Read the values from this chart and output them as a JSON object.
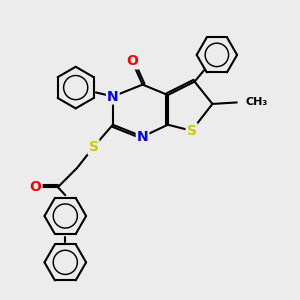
{
  "bg_color": "#ececec",
  "bond_color": "#000000",
  "bond_width": 1.5,
  "atom_colors": {
    "N": "#0000ff",
    "O": "#ff0000",
    "S": "#cccc00",
    "C": "#000000"
  },
  "font_size": 9,
  "fig_size": [
    3.0,
    3.0
  ],
  "dpi": 100
}
